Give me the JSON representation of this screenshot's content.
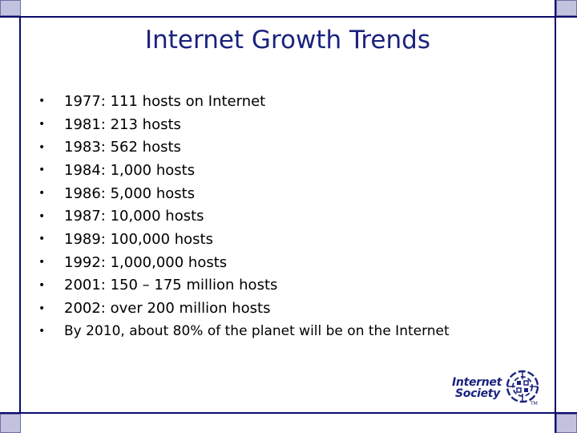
{
  "slide": {
    "title": "Internet Growth Trends",
    "bullets": [
      "1977: 111 hosts on Internet",
      "1981: 213 hosts",
      "1983: 562 hosts",
      "1984: 1,000 hosts",
      "1986: 5,000 hosts",
      "1987: 10,000 hosts",
      "1989: 100,000 hosts",
      "1992: 1,000,000 hosts",
      "2001: 150 – 175 million hosts",
      "2002: over 200 million hosts",
      "By 2010, about 80% of the planet will be on the Internet"
    ],
    "bullet_glyph": "•"
  },
  "logo": {
    "line1": "Internet",
    "line2": "Society",
    "tm": "TM"
  },
  "colors": {
    "frame": "#0b0b6e",
    "title": "#1a237e",
    "corner_fill": "#c2c2de"
  }
}
